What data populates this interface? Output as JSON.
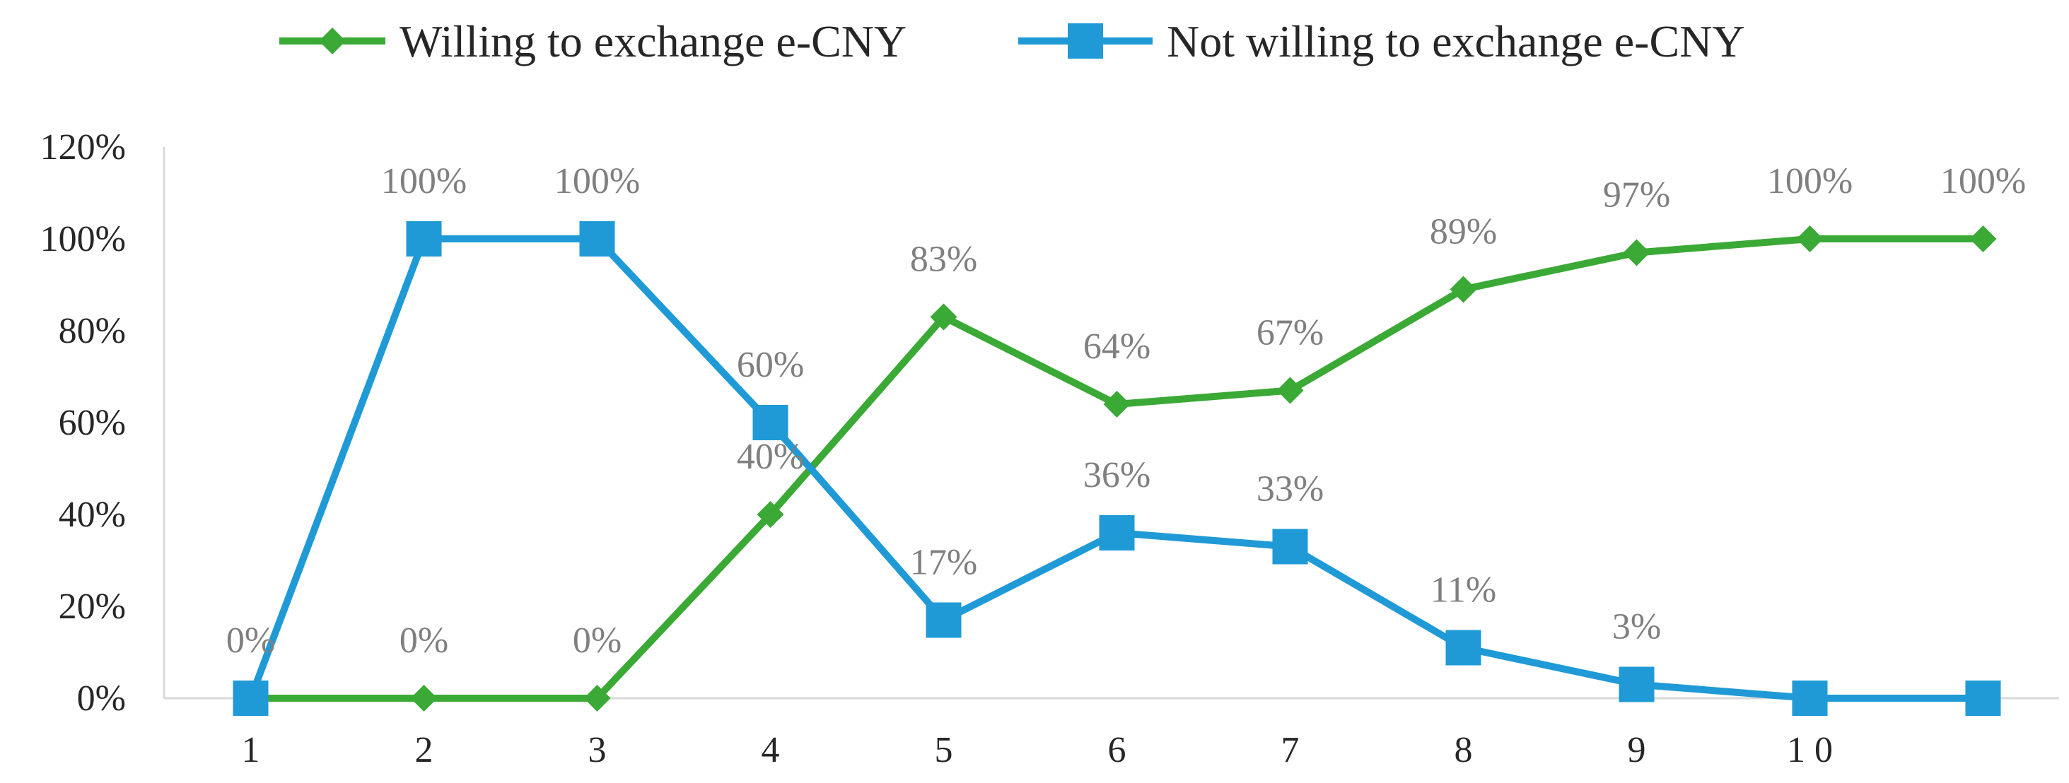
{
  "chart_data": {
    "type": "line",
    "categories": [
      "1",
      "2",
      "3",
      "4",
      "5",
      "6",
      "7",
      "8",
      "9",
      "1 0",
      ""
    ],
    "series": [
      {
        "name": "Willing to exchange e-CNY",
        "color": "#3aa935",
        "marker": "diamond",
        "values": [
          0,
          0,
          0,
          40,
          83,
          64,
          67,
          89,
          97,
          100,
          100
        ],
        "labels": [
          "0%",
          "0%",
          "0%",
          "40%",
          "83%",
          "64%",
          "67%",
          "89%",
          "97%",
          "100%",
          "100%"
        ]
      },
      {
        "name": "Not willing to exchange e-CNY",
        "color": "#1f9ad6",
        "marker": "square",
        "values": [
          0,
          100,
          100,
          60,
          17,
          36,
          33,
          11,
          3,
          0,
          0
        ],
        "labels": [
          "",
          "100%",
          "100%",
          "60%",
          "17%",
          "36%",
          "33%",
          "11%",
          "3%",
          "",
          ""
        ]
      }
    ],
    "yticks": [
      "0%",
      "20%",
      "40%",
      "60%",
      "80%",
      "100%",
      "120%"
    ],
    "ylim": [
      0,
      120
    ],
    "axis_color": "#d9d9d9",
    "legend_position": "top",
    "title": "",
    "xlabel": "",
    "ylabel": ""
  }
}
